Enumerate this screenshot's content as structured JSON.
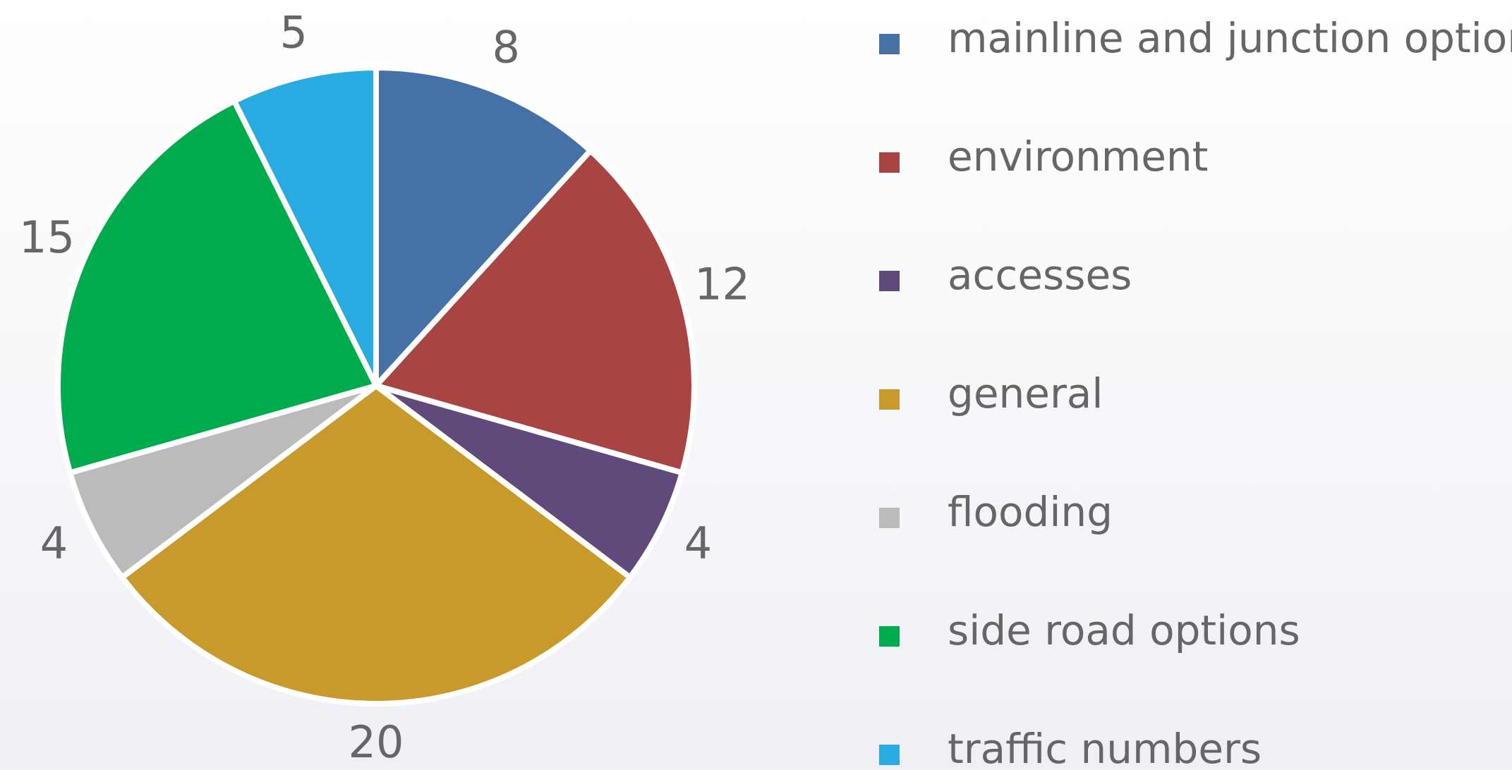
{
  "chart_data": {
    "type": "pie",
    "categories": [
      "mainline and junction options",
      "environment",
      "accesses",
      "general",
      "flooding",
      "side road options",
      "traffic numbers"
    ],
    "values": [
      8,
      12,
      4,
      20,
      4,
      15,
      5
    ],
    "colors": [
      "#4571a6",
      "#a84442",
      "#5f4a7b",
      "#c8992b",
      "#bbbbbb",
      "#00ab4e",
      "#29abe2"
    ],
    "legend": "right"
  }
}
